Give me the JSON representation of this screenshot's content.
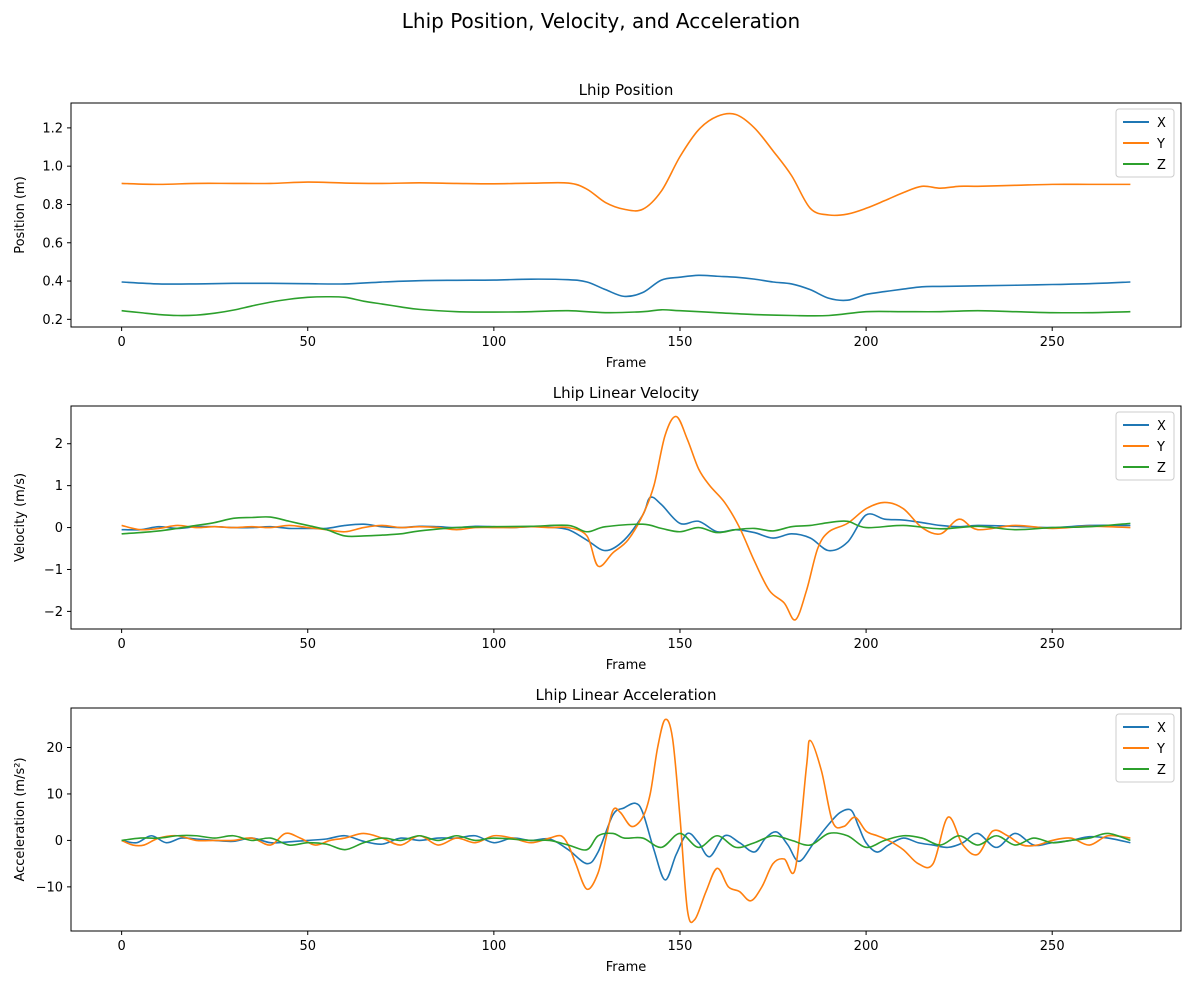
{
  "figure": {
    "title": "Lhip Position, Velocity, and Acceleration"
  },
  "colors": {
    "X": "#1f77b4",
    "Y": "#ff7f0e",
    "Z": "#2ca02c"
  },
  "chart_data": [
    {
      "type": "line",
      "title": "Lhip Position",
      "xlabel": "Frame",
      "ylabel": "Position (m)",
      "xlim": [
        -13.6,
        284.6
      ],
      "ylim": [
        0.16,
        1.33
      ],
      "xticks": [
        0,
        50,
        100,
        150,
        200,
        250
      ],
      "yticks": [
        0.2,
        0.4,
        0.6,
        0.8,
        1.0,
        1.2
      ],
      "ytick_labels": [
        "0.2",
        "0.4",
        "0.6",
        "0.8",
        "1.0",
        "1.2"
      ],
      "legend": "top-right",
      "series": [
        {
          "name": "X",
          "x": [
            0,
            10,
            20,
            30,
            40,
            50,
            60,
            70,
            80,
            90,
            100,
            110,
            120,
            125,
            130,
            135,
            140,
            145,
            150,
            155,
            160,
            165,
            170,
            175,
            180,
            185,
            190,
            195,
            200,
            205,
            210,
            215,
            220,
            230,
            240,
            250,
            260,
            271
          ],
          "y": [
            0.395,
            0.385,
            0.385,
            0.388,
            0.388,
            0.386,
            0.385,
            0.395,
            0.402,
            0.404,
            0.405,
            0.41,
            0.407,
            0.395,
            0.355,
            0.32,
            0.34,
            0.405,
            0.42,
            0.43,
            0.425,
            0.42,
            0.41,
            0.395,
            0.385,
            0.355,
            0.31,
            0.3,
            0.33,
            0.345,
            0.358,
            0.37,
            0.372,
            0.375,
            0.378,
            0.382,
            0.386,
            0.395
          ]
        },
        {
          "name": "Y",
          "x": [
            0,
            10,
            20,
            30,
            40,
            50,
            60,
            70,
            80,
            90,
            100,
            110,
            120,
            125,
            130,
            135,
            140,
            145,
            150,
            155,
            160,
            165,
            170,
            175,
            180,
            185,
            190,
            195,
            200,
            205,
            210,
            215,
            220,
            225,
            230,
            240,
            250,
            260,
            271
          ],
          "y": [
            0.91,
            0.905,
            0.91,
            0.91,
            0.91,
            0.917,
            0.912,
            0.91,
            0.913,
            0.91,
            0.908,
            0.911,
            0.912,
            0.88,
            0.81,
            0.775,
            0.775,
            0.87,
            1.05,
            1.19,
            1.26,
            1.27,
            1.2,
            1.08,
            0.95,
            0.78,
            0.745,
            0.75,
            0.78,
            0.82,
            0.862,
            0.895,
            0.885,
            0.895,
            0.895,
            0.9,
            0.905,
            0.905,
            0.905
          ]
        },
        {
          "name": "Z",
          "x": [
            0,
            5,
            10,
            15,
            20,
            25,
            30,
            35,
            40,
            45,
            50,
            55,
            60,
            65,
            70,
            75,
            80,
            90,
            100,
            110,
            120,
            130,
            140,
            145,
            150,
            160,
            170,
            180,
            190,
            200,
            210,
            220,
            230,
            240,
            250,
            260,
            271
          ],
          "y": [
            0.245,
            0.235,
            0.225,
            0.22,
            0.222,
            0.232,
            0.248,
            0.27,
            0.29,
            0.305,
            0.315,
            0.318,
            0.315,
            0.295,
            0.28,
            0.265,
            0.252,
            0.24,
            0.238,
            0.24,
            0.245,
            0.235,
            0.24,
            0.25,
            0.245,
            0.235,
            0.225,
            0.22,
            0.22,
            0.24,
            0.24,
            0.24,
            0.245,
            0.24,
            0.235,
            0.235,
            0.24
          ]
        }
      ]
    },
    {
      "type": "line",
      "title": "Lhip Linear Velocity",
      "xlabel": "Frame",
      "ylabel": "Velocity (m/s)",
      "xlim": [
        -13.6,
        284.6
      ],
      "ylim": [
        -2.42,
        2.9
      ],
      "xticks": [
        0,
        50,
        100,
        150,
        200,
        250
      ],
      "yticks": [
        -2,
        -1,
        0,
        1,
        2
      ],
      "ytick_labels": [
        "−2",
        "−1",
        "0",
        "1",
        "2"
      ],
      "legend": "top-right",
      "series": [
        {
          "name": "X",
          "x": [
            0,
            5,
            10,
            15,
            20,
            25,
            30,
            35,
            40,
            45,
            50,
            55,
            60,
            65,
            70,
            75,
            80,
            85,
            90,
            95,
            100,
            105,
            110,
            115,
            120,
            125,
            130,
            135,
            140,
            142,
            145,
            150,
            155,
            160,
            165,
            170,
            175,
            180,
            185,
            190,
            195,
            200,
            205,
            210,
            215,
            220,
            225,
            230,
            240,
            250,
            260,
            271
          ],
          "y": [
            -0.05,
            -0.05,
            0.02,
            -0.02,
            0.02,
            0.02,
            0.0,
            0.0,
            0.02,
            -0.02,
            -0.02,
            -0.02,
            0.05,
            0.08,
            0.02,
            0.0,
            0.03,
            0.02,
            0.0,
            0.03,
            0.02,
            0.0,
            0.02,
            0.01,
            -0.05,
            -0.3,
            -0.55,
            -0.3,
            0.3,
            0.72,
            0.55,
            0.1,
            0.15,
            -0.1,
            -0.05,
            -0.12,
            -0.25,
            -0.15,
            -0.25,
            -0.55,
            -0.35,
            0.3,
            0.2,
            0.18,
            0.12,
            0.05,
            0.02,
            0.05,
            0.03,
            0.0,
            0.05,
            0.05
          ]
        },
        {
          "name": "Y",
          "x": [
            0,
            5,
            10,
            15,
            20,
            25,
            30,
            35,
            40,
            45,
            50,
            55,
            60,
            65,
            70,
            75,
            80,
            85,
            90,
            95,
            100,
            105,
            110,
            115,
            120,
            125,
            128,
            132,
            136,
            140,
            143,
            146,
            149,
            152,
            155,
            158,
            162,
            166,
            170,
            174,
            178,
            181,
            184,
            187,
            190,
            195,
            200,
            205,
            210,
            215,
            220,
            225,
            230,
            240,
            250,
            260,
            271
          ],
          "y": [
            0.05,
            -0.05,
            -0.02,
            0.05,
            0.0,
            0.02,
            0.0,
            0.02,
            0.0,
            0.05,
            0.0,
            -0.05,
            -0.1,
            0.0,
            0.05,
            0.0,
            0.02,
            0.0,
            -0.05,
            0.0,
            0.0,
            0.0,
            0.02,
            0.0,
            0.0,
            -0.2,
            -0.92,
            -0.6,
            -0.3,
            0.3,
            1.0,
            2.2,
            2.65,
            2.1,
            1.4,
            1.0,
            0.6,
            0.0,
            -0.8,
            -1.5,
            -1.8,
            -2.2,
            -1.5,
            -0.5,
            -0.1,
            0.1,
            0.45,
            0.6,
            0.45,
            0.0,
            -0.15,
            0.2,
            -0.05,
            0.05,
            -0.02,
            0.03,
            0.0
          ]
        },
        {
          "name": "Z",
          "x": [
            0,
            10,
            20,
            25,
            30,
            35,
            40,
            45,
            50,
            55,
            60,
            65,
            70,
            75,
            80,
            90,
            100,
            110,
            120,
            125,
            130,
            140,
            145,
            150,
            155,
            160,
            165,
            170,
            175,
            180,
            185,
            190,
            195,
            200,
            210,
            220,
            230,
            240,
            250,
            260,
            271
          ],
          "y": [
            -0.15,
            -0.08,
            0.05,
            0.12,
            0.22,
            0.24,
            0.25,
            0.15,
            0.05,
            -0.05,
            -0.2,
            -0.2,
            -0.18,
            -0.15,
            -0.08,
            0.0,
            0.02,
            0.03,
            0.05,
            -0.1,
            0.02,
            0.08,
            -0.02,
            -0.1,
            0.0,
            -0.12,
            -0.05,
            -0.02,
            -0.08,
            0.02,
            0.05,
            0.12,
            0.15,
            0.0,
            0.05,
            -0.03,
            0.03,
            -0.05,
            0.0,
            0.02,
            0.1
          ]
        }
      ]
    },
    {
      "type": "line",
      "title": "Lhip Linear Acceleration",
      "xlabel": "Frame",
      "ylabel": "Acceleration (m/s²)",
      "xlim": [
        -13.6,
        284.6
      ],
      "ylim": [
        -19.5,
        28.5
      ],
      "xticks": [
        0,
        50,
        100,
        150,
        200,
        250
      ],
      "yticks": [
        -10,
        0,
        10,
        20
      ],
      "ytick_labels": [
        "−10",
        "0",
        "10",
        "20"
      ],
      "legend": "top-right",
      "series": [
        {
          "name": "X",
          "x": [
            0,
            4,
            8,
            12,
            16,
            20,
            25,
            30,
            35,
            40,
            45,
            50,
            55,
            60,
            65,
            70,
            75,
            80,
            85,
            90,
            95,
            100,
            105,
            110,
            115,
            120,
            125,
            128,
            132,
            135,
            138,
            140,
            143,
            146,
            149,
            152,
            155,
            158,
            162,
            166,
            170,
            173,
            176,
            179,
            182,
            186,
            190,
            193,
            196,
            198,
            200,
            203,
            206,
            210,
            214,
            218,
            222,
            226,
            230,
            235,
            240,
            245,
            250,
            255,
            260,
            265,
            271
          ],
          "y": [
            0.0,
            -0.5,
            1.0,
            -0.5,
            0.5,
            0.3,
            0.0,
            -0.2,
            0.5,
            -0.5,
            -0.3,
            0.0,
            0.3,
            1.0,
            -0.2,
            -0.8,
            0.5,
            0.0,
            0.5,
            0.5,
            1.0,
            -0.5,
            0.5,
            0.0,
            0.3,
            -2.0,
            -5.0,
            -2.5,
            5.5,
            7.0,
            8.0,
            6.0,
            -2.0,
            -8.5,
            -3.0,
            1.5,
            -0.5,
            -3.5,
            1.0,
            -0.5,
            -2.5,
            0.5,
            1.8,
            -1.0,
            -4.5,
            -0.5,
            3.5,
            6.0,
            6.5,
            3.0,
            -0.5,
            -2.5,
            -1.0,
            0.5,
            -0.5,
            -1.0,
            -1.5,
            -0.5,
            1.5,
            -1.5,
            1.5,
            -1.0,
            -0.5,
            0.0,
            0.8,
            0.5,
            -0.5
          ]
        },
        {
          "name": "Y",
          "x": [
            0,
            3,
            6,
            10,
            15,
            20,
            25,
            30,
            35,
            40,
            44,
            48,
            52,
            56,
            60,
            65,
            70,
            75,
            80,
            85,
            90,
            95,
            100,
            105,
            110,
            115,
            118,
            120,
            122,
            125,
            128,
            130,
            132,
            134,
            137,
            140,
            142,
            144,
            146,
            148,
            150,
            152,
            154,
            157,
            160,
            163,
            166,
            169,
            172,
            175,
            178,
            181,
            184,
            185,
            188,
            191,
            194,
            197,
            200,
            203,
            206,
            210,
            214,
            218,
            222,
            226,
            230,
            234,
            238,
            242,
            246,
            250,
            255,
            260,
            265,
            271
          ],
          "y": [
            0.0,
            -1.0,
            -1.0,
            0.5,
            1.0,
            0.0,
            0.0,
            0.0,
            0.5,
            -1.0,
            1.5,
            0.5,
            -1.0,
            0.0,
            0.5,
            1.5,
            0.5,
            -1.0,
            1.0,
            -1.0,
            0.5,
            -0.5,
            1.0,
            0.5,
            -0.5,
            0.5,
            1.0,
            -1.0,
            -5.0,
            -10.5,
            -7.0,
            0.0,
            6.5,
            6.0,
            3.0,
            5.0,
            10.0,
            20.0,
            26.0,
            22.0,
            5.0,
            -15.0,
            -17.0,
            -11.0,
            -6.0,
            -10.0,
            -11.0,
            -13.0,
            -10.0,
            -5.0,
            -4.0,
            -6.0,
            16.0,
            21.5,
            15.0,
            4.0,
            3.0,
            5.0,
            2.0,
            1.0,
            0.0,
            -2.0,
            -5.0,
            -5.0,
            5.0,
            -1.0,
            -3.0,
            2.0,
            1.0,
            -1.0,
            -1.0,
            0.0,
            0.5,
            -1.0,
            1.0,
            0.5
          ]
        },
        {
          "name": "Z",
          "x": [
            0,
            5,
            10,
            15,
            20,
            25,
            30,
            35,
            40,
            45,
            50,
            55,
            60,
            65,
            70,
            75,
            80,
            85,
            90,
            95,
            100,
            110,
            115,
            120,
            125,
            128,
            132,
            135,
            140,
            145,
            150,
            155,
            160,
            165,
            170,
            175,
            180,
            185,
            190,
            195,
            200,
            205,
            210,
            215,
            220,
            225,
            230,
            235,
            240,
            245,
            250,
            255,
            260,
            265,
            271
          ],
          "y": [
            0.0,
            0.5,
            0.5,
            1.0,
            1.0,
            0.5,
            1.0,
            0.0,
            0.5,
            -1.0,
            -0.5,
            -0.8,
            -2.0,
            -0.5,
            0.5,
            0.0,
            1.0,
            0.0,
            1.0,
            0.0,
            0.5,
            0.0,
            0.0,
            -1.0,
            -2.0,
            1.0,
            1.5,
            0.5,
            0.5,
            -1.5,
            1.5,
            -1.5,
            1.0,
            -1.5,
            -0.5,
            1.0,
            0.0,
            -1.0,
            1.5,
            1.0,
            -1.5,
            0.0,
            1.0,
            0.5,
            -1.0,
            1.0,
            -1.0,
            1.0,
            -1.0,
            0.5,
            -0.5,
            0.0,
            0.5,
            1.5,
            0.0
          ]
        }
      ]
    }
  ]
}
